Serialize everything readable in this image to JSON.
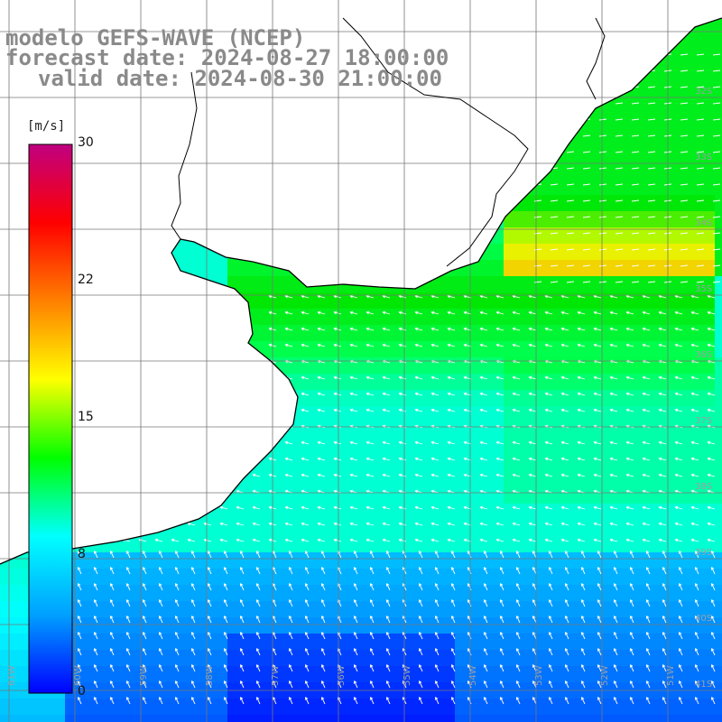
{
  "header": {
    "model_line": "modelo GEFS-WAVE (NCEP)",
    "forecast_line": "forecast date: 2024-08-27 18:00:00",
    "valid_line": "valid date: 2024-08-30 21:00:00"
  },
  "colorbar": {
    "unit": "[m/s]",
    "ticks": [
      "30",
      "22",
      "15",
      "8",
      "0"
    ],
    "range": [
      0,
      30
    ],
    "colors": [
      "#0000ff",
      "#00a0ff",
      "#00ffff",
      "#00ff00",
      "#ffff00",
      "#ff8000",
      "#ff0000",
      "#c00080"
    ]
  },
  "map": {
    "lat_labels": [
      "32S",
      "33S",
      "34S",
      "35S",
      "36S",
      "37S",
      "38S",
      "39S",
      "40S",
      "41S"
    ],
    "lon_labels": [
      "61W",
      "60W",
      "59W",
      "58W",
      "57W",
      "56W",
      "55W",
      "54W",
      "53W",
      "52W",
      "51W"
    ],
    "ocean_base_color": "#00e0ff",
    "land_color": "#ffffff",
    "coast_color": "#000000",
    "grid_color": "#777777",
    "arrow_color": "#ffffff"
  }
}
